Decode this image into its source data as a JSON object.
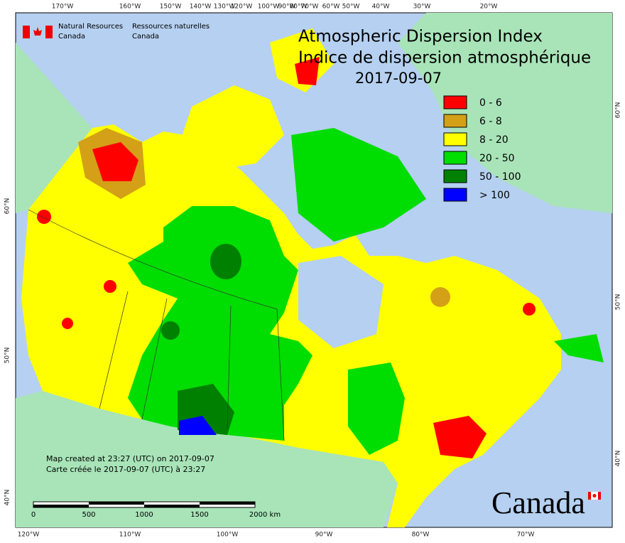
{
  "header": {
    "title_en": "Atmospheric Dispersion Index",
    "title_fr": "Indice de dispersion atmosphérique",
    "date": "2017-09-07"
  },
  "agency": {
    "en_1": "Natural Resources",
    "en_2": "Canada",
    "fr_1": "Ressources naturelles",
    "fr_2": "Canada"
  },
  "legend": [
    {
      "label": "0 - 6",
      "color": "#ff0000"
    },
    {
      "label": "6 - 8",
      "color": "#d4a017"
    },
    {
      "label": "8 - 20",
      "color": "#ffff00"
    },
    {
      "label": "20 - 50",
      "color": "#00dd00"
    },
    {
      "label": "50 - 100",
      "color": "#008000"
    },
    {
      "label": "> 100",
      "color": "#0000ff"
    }
  ],
  "top_longitudes": [
    "170°W",
    "160°W",
    "150°W",
    "140°W",
    "130°W",
    "120°W",
    "100°W",
    "90°W",
    "80°W",
    "70°W",
    "60°W",
    "50°W",
    "40°W",
    "30°W",
    "20°W"
  ],
  "bottom_longitudes": [
    "120°W",
    "110°W",
    "100°W",
    "90°W",
    "80°W",
    "70°W"
  ],
  "left_latitudes": [
    "60°N",
    "50°N",
    "40°N"
  ],
  "right_latitudes": [
    "60°N",
    "50°N",
    "40°N"
  ],
  "credit": {
    "en": "Map created at 23:27 (UTC) on 2017-09-07",
    "fr": "Carte créée le 2017-09-07 (UTC) à 23:27"
  },
  "scale_bar": [
    "0",
    "500",
    "1000",
    "1500",
    "2000 km"
  ],
  "wordmark": "Canada"
}
